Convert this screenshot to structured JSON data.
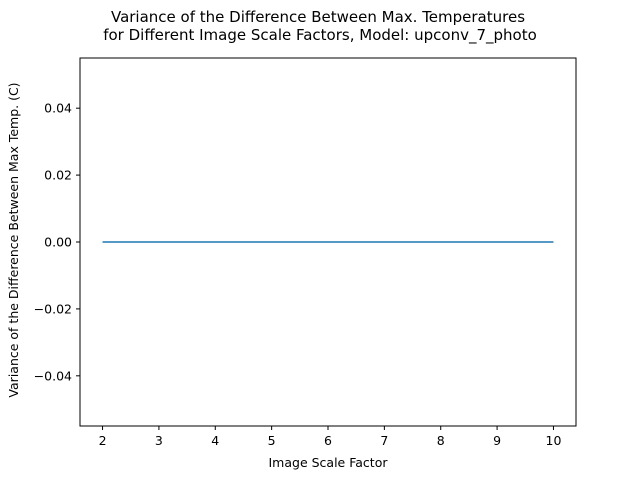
{
  "chart_data": {
    "type": "line",
    "title_lines": [
      "Variance of the Difference Between Max. Temperatures",
      "for Different Image Scale Factors, Model: upconv_7_photo"
    ],
    "xlabel": "Image Scale Factor",
    "ylabel": "Variance of the Difference Between Max Temp. (C)",
    "x": [
      2,
      3,
      4,
      5,
      6,
      7,
      8,
      9,
      10
    ],
    "series": [
      {
        "values": [
          0,
          0,
          0,
          0,
          0,
          0,
          0,
          0,
          0
        ],
        "color": "#1f77b4"
      }
    ],
    "xlim": [
      1.6,
      10.4
    ],
    "ylim": [
      -0.055,
      0.055
    ],
    "xticks": [
      2,
      3,
      4,
      5,
      6,
      7,
      8,
      9,
      10
    ],
    "xtick_labels": [
      "2",
      "3",
      "4",
      "5",
      "6",
      "7",
      "8",
      "9",
      "10"
    ],
    "yticks": [
      -0.04,
      -0.02,
      0.0,
      0.02,
      0.04
    ],
    "ytick_labels": [
      "−0.04",
      "−0.02",
      "0.00",
      "0.02",
      "0.04"
    ],
    "grid": false,
    "legend": false
  }
}
